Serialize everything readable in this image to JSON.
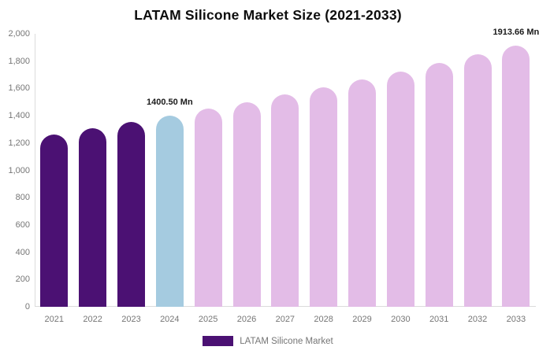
{
  "title": "LATAM Silicone Market Size (2021-2033)",
  "legend": {
    "label": "LATAM Silicone Market",
    "swatch_color": "#4B1173"
  },
  "colors": {
    "historical_bar": "#4B1173",
    "base_year_bar": "#A5CBE0",
    "forecast_bar": "#E3BCE7",
    "axis_line": "#DBDBDB",
    "axis_text": "#767676",
    "data_label_text": "#1A1A1A"
  },
  "chart_data": {
    "type": "bar",
    "title": "LATAM Silicone Market Size (2021-2033)",
    "unit": "Mn",
    "categories": [
      "2021",
      "2022",
      "2023",
      "2024",
      "2025",
      "2026",
      "2027",
      "2028",
      "2029",
      "2030",
      "2031",
      "2032",
      "2033"
    ],
    "values": [
      1262.08,
      1306.63,
      1352.75,
      1400.5,
      1449.94,
      1501.12,
      1554.11,
      1608.97,
      1665.77,
      1724.57,
      1785.45,
      1848.48,
      1913.66
    ],
    "series_roles": [
      "historical",
      "historical",
      "historical",
      "base_year",
      "forecast",
      "forecast",
      "forecast",
      "forecast",
      "forecast",
      "forecast",
      "forecast",
      "forecast",
      "forecast"
    ],
    "data_labels": [
      {
        "index": 3,
        "text": "1400.50 Mn"
      },
      {
        "index": 12,
        "text": "1913.66 Mn"
      }
    ],
    "xlabel": "",
    "ylabel": "",
    "ylim": [
      0,
      2000
    ],
    "y_ticks": [
      0,
      200,
      400,
      600,
      800,
      1000,
      1200,
      1400,
      1600,
      1800,
      2000
    ],
    "grid": false,
    "legend_position": "bottom",
    "legend_entries": [
      "LATAM Silicone Market"
    ]
  }
}
